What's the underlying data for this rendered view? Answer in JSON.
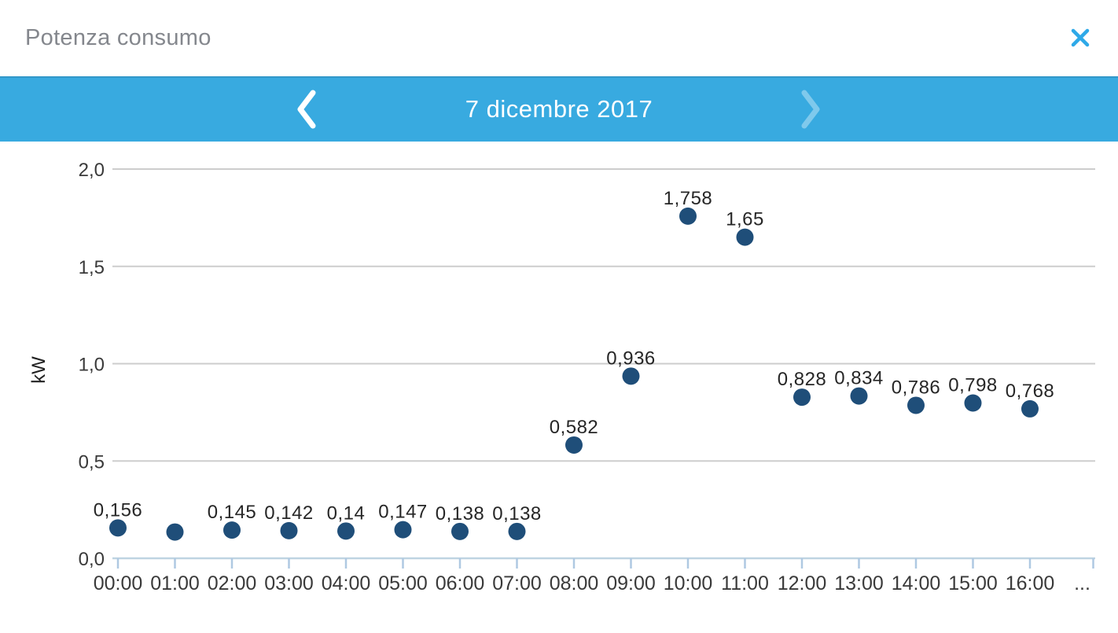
{
  "colors": {
    "accent_bar": "#38AAE0",
    "close_icon": "#2EA9E8",
    "title_text": "#84878D",
    "date_text": "#ffffff",
    "chevron_enabled": "#ffffff",
    "chevron_disabled": "#7FC9EC",
    "point": "#1F4E79",
    "grid": "#CDCDCD",
    "axis": "#BFD4E2",
    "tick": "#AFC9E2",
    "axis_label": "#3A3A3A",
    "point_label": "#262626"
  },
  "header": {
    "title": "Potenza consumo",
    "close_icon": "close-x"
  },
  "date_nav": {
    "date_label": "7 dicembre 2017",
    "prev_icon": "chevron-left",
    "next_icon": "chevron-right",
    "next_disabled": true
  },
  "chart_data": {
    "type": "scatter",
    "title": "",
    "xlabel": "",
    "ylabel": "kW",
    "ylim": [
      0,
      2
    ],
    "ytick_values": [
      0,
      0.5,
      1,
      1.5,
      2
    ],
    "ytick_labels": [
      "0,0",
      "0,5",
      "1,0",
      "1,5",
      "2,0"
    ],
    "grid": true,
    "legend_position": "none",
    "categories": [
      "00:00",
      "01:00",
      "02:00",
      "03:00",
      "04:00",
      "05:00",
      "06:00",
      "07:00",
      "08:00",
      "09:00",
      "10:00",
      "11:00",
      "12:00",
      "13:00",
      "14:00",
      "15:00",
      "16:00"
    ],
    "overflow_label": "...",
    "values": [
      0.156,
      0.135,
      0.145,
      0.142,
      0.14,
      0.147,
      0.138,
      0.138,
      0.582,
      0.936,
      1.758,
      1.65,
      0.828,
      0.834,
      0.786,
      0.798,
      0.768
    ],
    "point_labels": [
      "0,156",
      "",
      "0,145",
      "0,142",
      "0,14",
      "0,147",
      "0,138",
      "0,138",
      "0,582",
      "0,936",
      "1,758",
      "1,65",
      "0,828",
      "0,834",
      "0,786",
      "0,798",
      "0,768"
    ]
  }
}
